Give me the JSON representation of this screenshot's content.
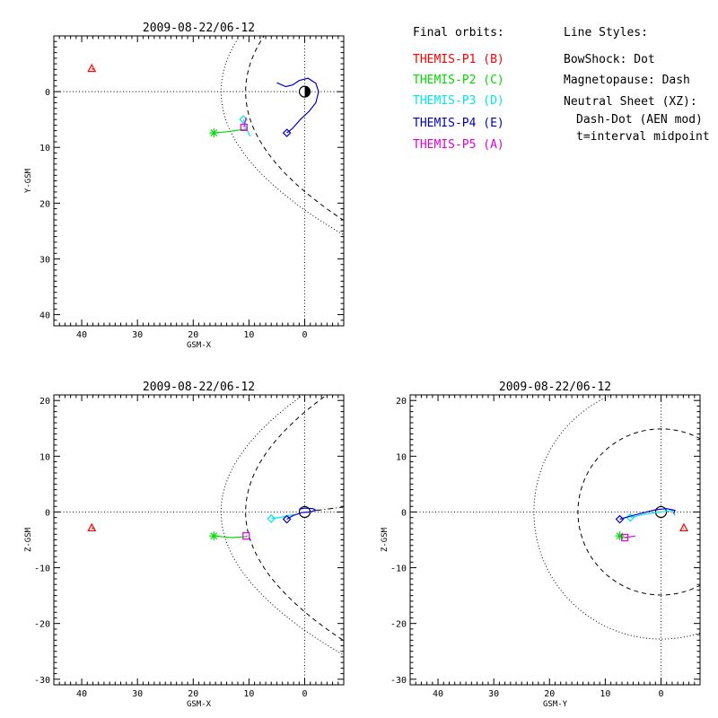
{
  "chart_data": [
    {
      "type": "scatter",
      "title": "2009-08-22/06-12",
      "xlabel": "GSM-X",
      "ylabel": "Y-GSM",
      "xlim": [
        45,
        -7
      ],
      "ylim": [
        -10,
        42
      ],
      "x_ticks": [
        40,
        30,
        20,
        10,
        0
      ],
      "y_ticks": [
        0,
        10,
        20,
        30,
        40
      ],
      "grid": false,
      "y_inverted": true,
      "earth": {
        "x": 0,
        "y": 0
      },
      "reference_lines": {
        "x0": true,
        "y0": true
      },
      "bow_shock": {
        "nose": 15.0,
        "flare": 0.5,
        "range": [
          -7,
          15.0
        ]
      },
      "magnetopause": {
        "nose": 10.6,
        "flare": 0.35,
        "range": [
          -7,
          10.6
        ]
      },
      "series": [
        {
          "name": "THEMIS-P1 (B)",
          "color": "#ff0000",
          "marker": "triangle",
          "points": [
            [
              38.2,
              -4.1
            ],
            [
              37.7,
              -4.0
            ]
          ]
        },
        {
          "name": "THEMIS-P2 (C)",
          "color": "#00dd00",
          "marker": "asterisk",
          "points": [
            [
              16.3,
              7.4
            ],
            [
              14.0,
              7.2
            ],
            [
              10.3,
              6.7
            ]
          ]
        },
        {
          "name": "THEMIS-P3 (D)",
          "color": "#00e5ee",
          "marker": "diamond",
          "points": [
            [
              11.0,
              5.0
            ],
            [
              10.5,
              6.5
            ],
            [
              9.8,
              8.0
            ]
          ]
        },
        {
          "name": "THEMIS-P4 (E)",
          "color": "#0000cc",
          "marker": "diamond",
          "points": [
            [
              3.2,
              7.4
            ],
            [
              2.2,
              6.6
            ],
            [
              0.8,
              5.0
            ],
            [
              -0.8,
              3.5
            ],
            [
              -2.0,
              2.0
            ],
            [
              -2.5,
              0.0
            ],
            [
              -2.0,
              -1.5
            ],
            [
              -0.6,
              -2.4
            ],
            [
              1.0,
              -2.0
            ],
            [
              2.2,
              -1.2
            ],
            [
              3.4,
              -0.9
            ],
            [
              5.0,
              -1.6
            ]
          ]
        },
        {
          "name": "THEMIS-P5 (A)",
          "color": "#e000e0",
          "marker": "square",
          "points": [
            [
              10.9,
              6.4
            ],
            [
              10.5,
              4.6
            ]
          ]
        }
      ]
    },
    {
      "type": "scatter",
      "title": "2009-08-22/06-12",
      "xlabel": "GSM-X",
      "ylabel": "Z-GSM",
      "xlim": [
        45,
        -7
      ],
      "ylim": [
        -31,
        21
      ],
      "x_ticks": [
        40,
        30,
        20,
        10,
        0
      ],
      "y_ticks": [
        20,
        10,
        0,
        -10,
        -20,
        -30
      ],
      "grid": false,
      "earth": {
        "x": 0,
        "y": 0
      },
      "reference_lines": {
        "x0": true,
        "y0": true
      },
      "bow_shock": {
        "nose": 15.0,
        "flare": 0.5,
        "range": [
          -7,
          15.0
        ]
      },
      "magnetopause": {
        "nose": 10.6,
        "flare": 0.35,
        "range": [
          -7,
          10.6
        ]
      },
      "neutral_sheet": {
        "points": [
          [
            0.0,
            0.0
          ],
          [
            -7.0,
            0.9
          ]
        ]
      },
      "series": [
        {
          "name": "THEMIS-P1 (B)",
          "color": "#ff0000",
          "marker": "triangle",
          "points": [
            [
              38.2,
              -2.9
            ],
            [
              37.7,
              -2.9
            ]
          ]
        },
        {
          "name": "THEMIS-P2 (C)",
          "color": "#00dd00",
          "marker": "asterisk",
          "points": [
            [
              16.3,
              -4.3
            ],
            [
              13.0,
              -4.6
            ],
            [
              10.3,
              -4.4
            ]
          ]
        },
        {
          "name": "THEMIS-P3 (D)",
          "color": "#00e5ee",
          "marker": "diamond",
          "points": [
            [
              6.0,
              -1.2
            ],
            [
              4.0,
              -0.9
            ],
            [
              2.0,
              -0.5
            ]
          ]
        },
        {
          "name": "THEMIS-P4 (E)",
          "color": "#0000cc",
          "marker": "diamond",
          "points": [
            [
              3.2,
              -1.3
            ],
            [
              2.0,
              -0.6
            ],
            [
              0.5,
              -0.1
            ],
            [
              -1.0,
              0.0
            ],
            [
              -2.0,
              0.3
            ],
            [
              -1.5,
              0.6
            ],
            [
              0.0,
              0.7
            ],
            [
              1.0,
              0.5
            ]
          ]
        },
        {
          "name": "THEMIS-P5 (A)",
          "color": "#e000e0",
          "marker": "square",
          "points": [
            [
              10.5,
              -4.3
            ],
            [
              10.3,
              -4.3
            ]
          ]
        }
      ]
    },
    {
      "type": "scatter",
      "title": "2009-08-22/06-12",
      "xlabel": "GSM-Y",
      "ylabel": "Z-GSM",
      "xlim": [
        45,
        -7
      ],
      "ylim": [
        -31,
        21
      ],
      "x_ticks": [
        40,
        30,
        20,
        10,
        0
      ],
      "y_ticks": [
        20,
        10,
        0,
        -10,
        -20,
        -30
      ],
      "grid": false,
      "earth": {
        "x": 0,
        "y": 0
      },
      "reference_lines": {
        "x0": true,
        "y0": true
      },
      "bow_shock_circle": {
        "radius": 22.8
      },
      "magnetopause_circle": {
        "radius": 14.9
      },
      "series": [
        {
          "name": "THEMIS-P1 (B)",
          "color": "#ff0000",
          "marker": "triangle",
          "points": [
            [
              -4.1,
              -2.9
            ],
            [
              -4.0,
              -2.9
            ]
          ]
        },
        {
          "name": "THEMIS-P2 (C)",
          "color": "#00dd00",
          "marker": "asterisk",
          "points": [
            [
              7.4,
              -4.3
            ],
            [
              7.0,
              -4.6
            ],
            [
              6.0,
              -4.6
            ]
          ]
        },
        {
          "name": "THEMIS-P3 (D)",
          "color": "#00e5ee",
          "marker": "diamond",
          "points": [
            [
              5.5,
              -1.0
            ],
            [
              3.0,
              -0.4
            ],
            [
              -2.0,
              0.3
            ],
            [
              -2.5,
              -0.6
            ]
          ]
        },
        {
          "name": "THEMIS-P4 (E)",
          "color": "#0000cc",
          "marker": "diamond",
          "points": [
            [
              7.4,
              -1.3
            ],
            [
              5.0,
              -0.6
            ],
            [
              3.0,
              -0.1
            ],
            [
              1.0,
              0.4
            ],
            [
              -1.0,
              0.6
            ],
            [
              -2.5,
              0.3
            ],
            [
              -2.3,
              -0.3
            ]
          ]
        },
        {
          "name": "THEMIS-P5 (A)",
          "color": "#e000e0",
          "marker": "square",
          "points": [
            [
              6.5,
              -4.6
            ],
            [
              4.6,
              -4.3
            ]
          ]
        }
      ]
    }
  ],
  "legend": {
    "heading": "Final orbits:",
    "entries": [
      {
        "label": "THEMIS-P1 (B)",
        "color": "#ff0000"
      },
      {
        "label": "THEMIS-P2 (C)",
        "color": "#00dd00"
      },
      {
        "label": "THEMIS-P3 (D)",
        "color": "#00e5ee"
      },
      {
        "label": "THEMIS-P4 (E)",
        "color": "#0000cc"
      },
      {
        "label": "THEMIS-P5 (A)",
        "color": "#e000e0"
      }
    ]
  },
  "line_styles": {
    "heading": "Line Styles:",
    "lines": [
      "BowShock: Dot",
      "Magnetopause: Dash",
      "Neutral Sheet (XZ):",
      "Dash-Dot (AEN mod)",
      "t=interval midpoint"
    ]
  }
}
